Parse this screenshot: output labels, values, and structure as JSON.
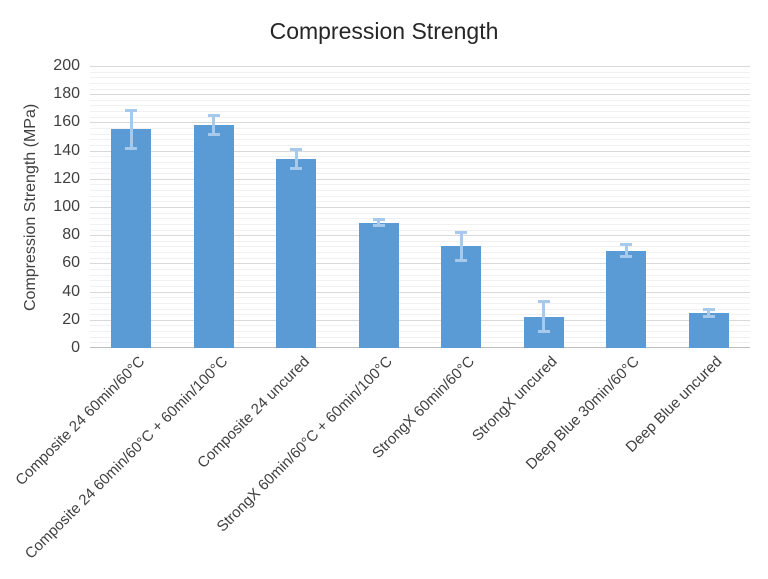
{
  "chart_data": {
    "type": "bar",
    "title": "Compression Strength",
    "xlabel": "",
    "ylabel": "Compression Strength (MPa)",
    "ylim": [
      0,
      200
    ],
    "y_major_step": 20,
    "y_minor_step": 4,
    "grid": "major and minor horizontal gridlines",
    "legend_position": "none",
    "categories": [
      "Composite 24 60min/60°C",
      "Composite 24 60min/60°C + 60min/100°C",
      "Composite 24 uncured",
      "StrongX 60min/60°C + 60min/100°C",
      "StrongX 60min/60°C",
      "StrongX uncured",
      "Deep Blue 30min/60°C",
      "Deep Blue uncured"
    ],
    "values": [
      155,
      158,
      134,
      89,
      72,
      22,
      69,
      25
    ],
    "error_bars_plus_minus": [
      14,
      7,
      7,
      2.5,
      10,
      11,
      4.5,
      3
    ],
    "colors": {
      "bar": "#5B9BD5",
      "error_bar": "#A6C9EC",
      "major_gridline": "#D9D9D9",
      "minor_gridline": "#F1F1F1",
      "axis_line": "#BFBFBF",
      "tick_label": "#404040",
      "title": "#262626"
    }
  }
}
